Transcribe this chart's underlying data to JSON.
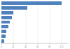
{
  "values": [
    100,
    43,
    20,
    17,
    14,
    11,
    8,
    7,
    5
  ],
  "bar_color": "#4f81bd",
  "background_color": "#ffffff",
  "figsize": [
    1.0,
    0.71
  ],
  "dpi": 100,
  "bar_height": 0.72,
  "axis_color": "#999999",
  "grid_color": "#e0e0e0",
  "xlim": [
    0,
    110
  ],
  "xtick_labelsize": 2.5
}
